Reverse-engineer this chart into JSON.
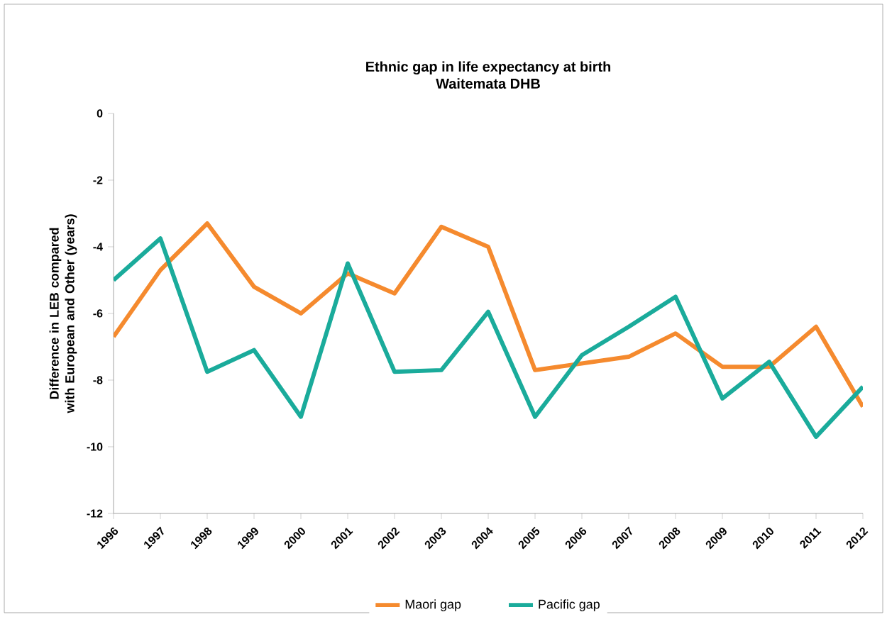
{
  "chart_data": {
    "type": "line",
    "title": "Ethnic gap in life expectancy at birth",
    "subtitle": "Waitemata DHB",
    "ylabel": "Difference in LEB compared with European and Other (years)",
    "categories": [
      "1996",
      "1997",
      "1998",
      "1999",
      "2000",
      "2001",
      "2002",
      "2003",
      "2004",
      "2005",
      "2006",
      "2007",
      "2008",
      "2009",
      "2010",
      "2011",
      "2012"
    ],
    "series": [
      {
        "name": "Maori gap",
        "color": "#f58a2e",
        "values": [
          -6.7,
          -4.7,
          -3.3,
          -5.2,
          -6.0,
          -4.8,
          -5.4,
          -3.4,
          -4.0,
          -7.7,
          -7.5,
          -7.3,
          -6.6,
          -7.6,
          -7.6,
          -6.4,
          -8.8
        ]
      },
      {
        "name": "Pacific gap",
        "color": "#1aab9b",
        "values": [
          -5.0,
          -3.75,
          -7.75,
          -7.1,
          -9.1,
          -4.5,
          -7.75,
          -7.7,
          -5.95,
          -9.1,
          -7.25,
          -6.4,
          -5.5,
          -8.55,
          -7.45,
          -9.7,
          -8.2
        ]
      }
    ],
    "ylim": [
      -12,
      0
    ],
    "yticks": [
      0,
      -2,
      -4,
      -6,
      -8,
      -10,
      -12
    ],
    "grid": false,
    "legend": "bottom",
    "marker": "none",
    "line_style": "solid"
  }
}
